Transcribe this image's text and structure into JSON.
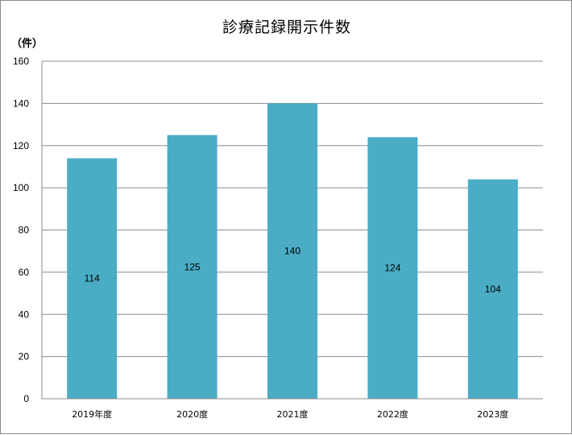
{
  "chart_data": {
    "type": "bar",
    "title": "診療記録開示件数",
    "unit_label": "（件）",
    "categories": [
      "2019年度",
      "2020度",
      "2021度",
      "2022度",
      "2023度"
    ],
    "values": [
      114,
      125,
      140,
      124,
      104
    ],
    "ylim": [
      0,
      160
    ],
    "yticks": [
      0,
      20,
      40,
      60,
      80,
      100,
      120,
      140,
      160
    ],
    "grid": true,
    "legend": "none",
    "bar_color": "#4bacc6",
    "grid_color": "#8c8c8c"
  }
}
